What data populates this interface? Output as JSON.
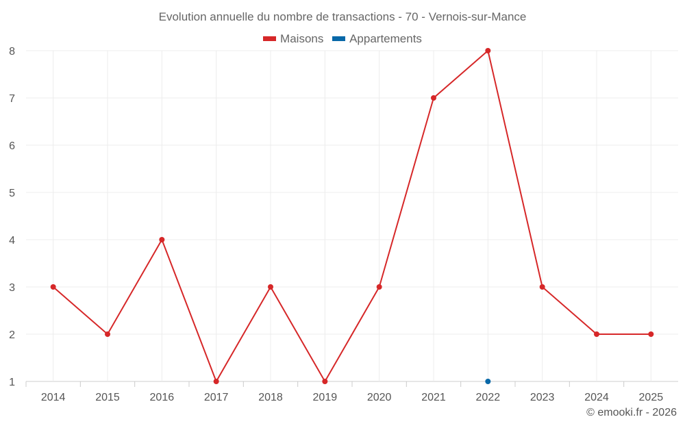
{
  "chart_data": {
    "type": "line",
    "title": "Evolution annuelle du nombre de transactions - 70 - Vernois-sur-Mance",
    "categories": [
      "2014",
      "2015",
      "2016",
      "2017",
      "2018",
      "2019",
      "2020",
      "2021",
      "2022",
      "2023",
      "2024",
      "2025"
    ],
    "series": [
      {
        "name": "Maisons",
        "color": "#d62728",
        "values": [
          3,
          2,
          4,
          1,
          3,
          1,
          3,
          7,
          8,
          3,
          2,
          2
        ]
      },
      {
        "name": "Appartements",
        "color": "#0868a8",
        "values": [
          null,
          null,
          null,
          null,
          null,
          null,
          null,
          null,
          1,
          null,
          null,
          null
        ]
      }
    ],
    "yticks": [
      "1",
      "2",
      "3",
      "4",
      "5",
      "6",
      "7",
      "8"
    ],
    "ylim": [
      1,
      8
    ],
    "grid": true,
    "legend": "top-center"
  },
  "credit": "© emooki.fr - 2026"
}
